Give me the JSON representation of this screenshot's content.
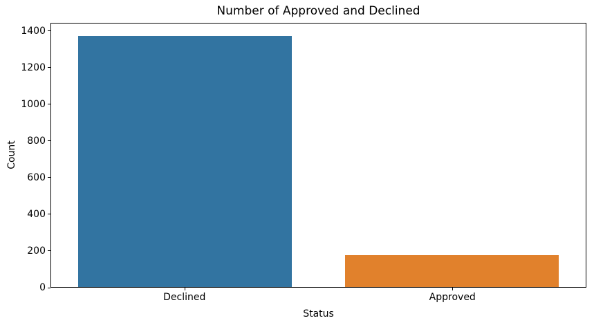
{
  "chart_data": {
    "type": "bar",
    "title": "Number of Approved and Declined",
    "xlabel": "Status",
    "ylabel": "Count",
    "categories": [
      "Declined",
      "Approved"
    ],
    "values": [
      1375,
      175
    ],
    "colors": [
      "#3274a1",
      "#e1812c"
    ],
    "yticks": [
      0,
      200,
      400,
      600,
      800,
      1000,
      1200,
      1400
    ],
    "ylim": [
      0,
      1444
    ],
    "bar_width_fraction": 0.4,
    "grid": false,
    "legend_position": "none"
  }
}
